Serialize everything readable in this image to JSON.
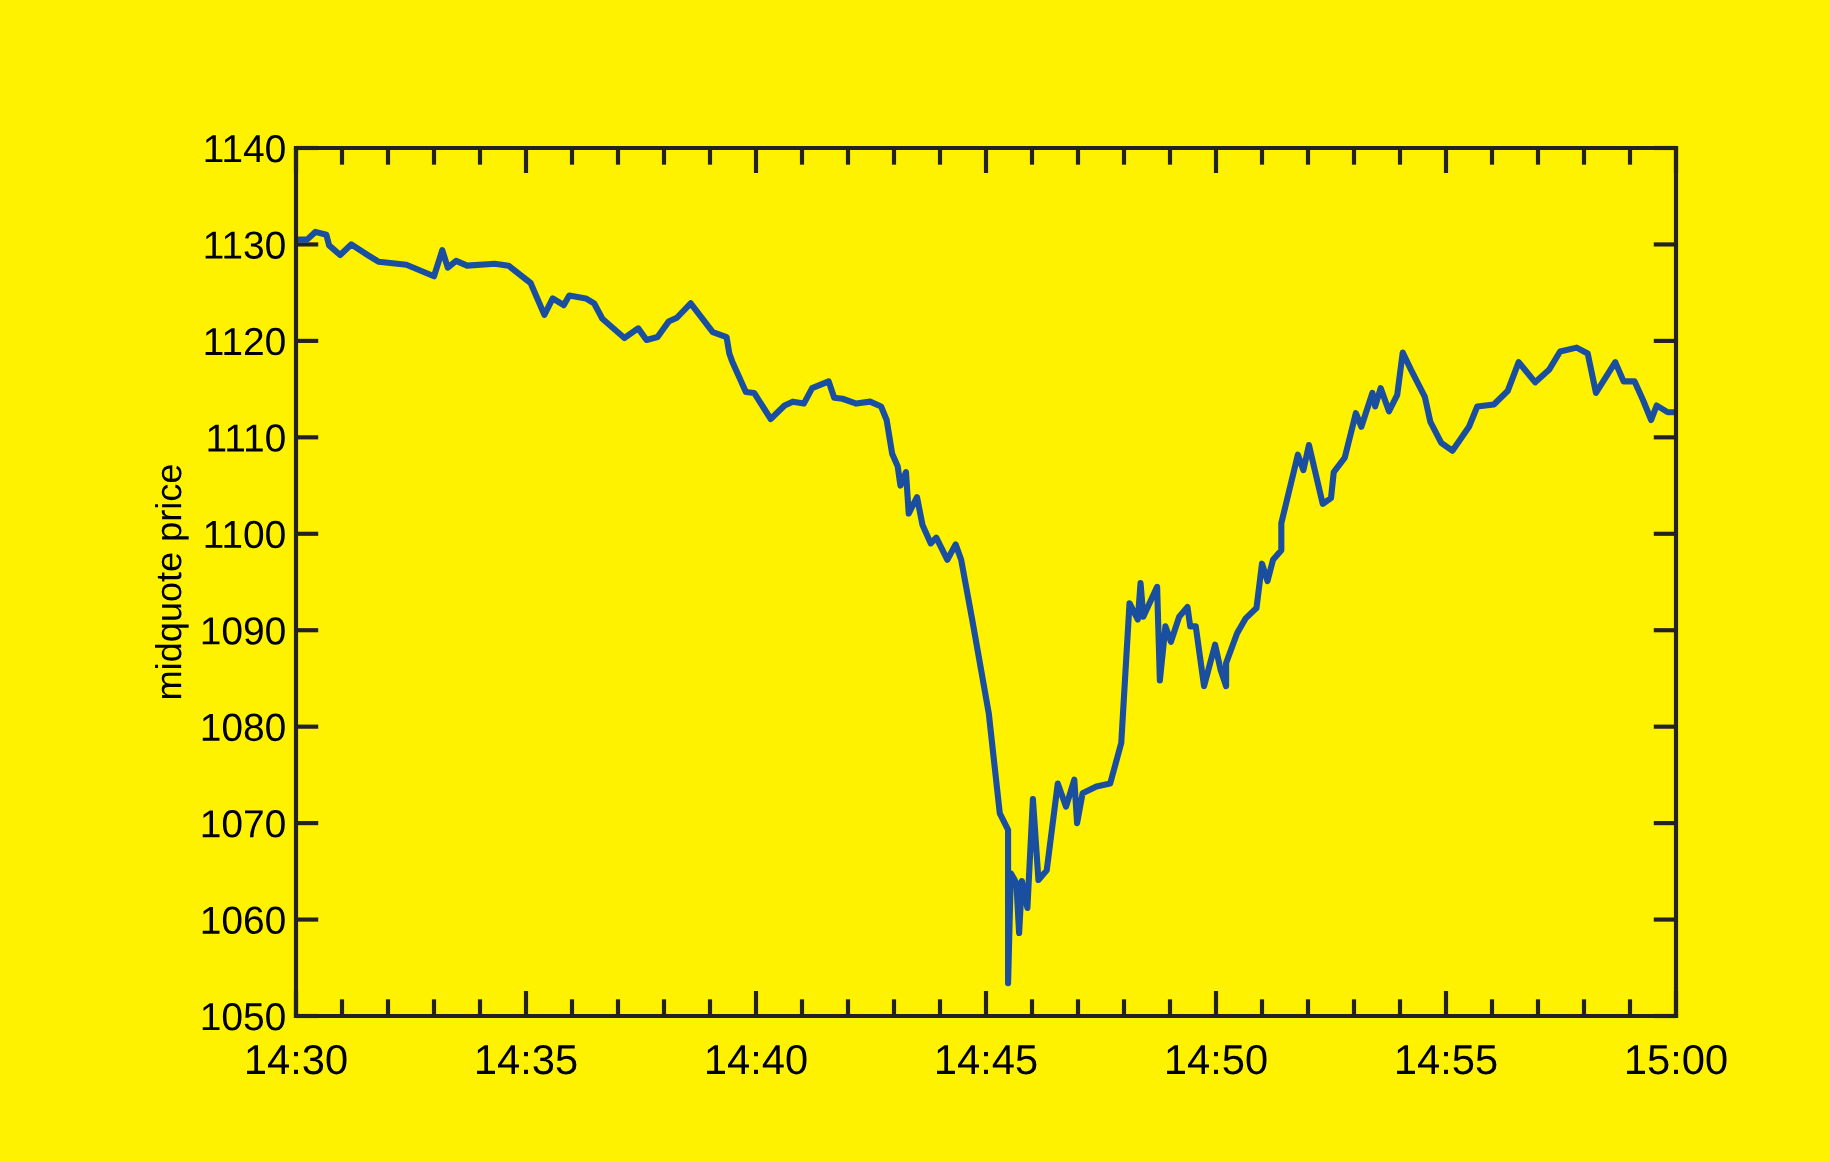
{
  "chart_data": {
    "type": "line",
    "ylabel": "midquote price",
    "x": [
      14.5,
      14.504,
      14.507,
      14.511,
      14.512,
      14.516,
      14.52,
      14.526,
      14.53,
      14.54,
      14.55,
      14.553,
      14.555,
      14.558,
      14.562,
      14.572,
      14.577,
      14.585,
      14.59,
      14.593,
      14.597,
      14.599,
      14.605,
      14.608,
      14.611,
      14.619,
      14.624,
      14.627,
      14.631,
      14.635,
      14.638,
      14.643,
      14.651,
      14.656,
      14.657,
      14.658,
      14.663,
      14.666,
      14.672,
      14.677,
      14.68,
      14.684,
      14.687,
      14.693,
      14.695,
      14.698,
      14.703,
      14.708,
      14.712,
      14.714,
      14.716,
      14.718,
      14.719,
      14.721,
      14.722,
      14.725,
      14.727,
      14.73,
      14.732,
      14.736,
      14.739,
      14.741,
      14.745,
      14.751,
      14.755,
      14.758,
      14.758,
      14.759,
      14.761,
      14.762,
      14.763,
      14.765,
      14.767,
      14.769,
      14.772,
      14.776,
      14.779,
      14.782,
      14.783,
      14.785,
      14.79,
      14.795,
      14.799,
      14.802,
      14.805,
      14.806,
      14.807,
      14.812,
      14.813,
      14.815,
      14.817,
      14.82,
      14.823,
      14.824,
      14.826,
      14.829,
      14.833,
      14.835,
      14.837,
      14.837,
      14.841,
      14.844,
      14.848,
      14.85,
      14.852,
      14.854,
      14.857,
      14.857,
      14.863,
      14.865,
      14.867,
      14.872,
      14.875,
      14.876,
      14.88,
      14.884,
      14.886,
      14.89,
      14.891,
      14.893,
      14.896,
      14.899,
      14.901,
      14.904,
      14.909,
      14.911,
      14.915,
      14.919,
      14.925,
      14.928,
      14.934,
      14.939,
      14.943,
      14.949,
      14.954,
      14.958,
      14.964,
      14.968,
      14.971,
      14.978,
      14.981,
      14.985,
      14.988,
      14.991,
      14.993,
      14.997,
      15.0
    ],
    "series": [
      {
        "color": "#1a4fa0",
        "values": [
          1130.5,
          1130.5,
          1131.3,
          1131.0,
          1129.9,
          1128.9,
          1130.0,
          1128.9,
          1128.2,
          1127.9,
          1126.7,
          1129.4,
          1127.6,
          1128.3,
          1127.8,
          1128.0,
          1127.8,
          1126.0,
          1122.7,
          1124.4,
          1123.7,
          1124.7,
          1124.4,
          1123.9,
          1122.3,
          1120.3,
          1121.3,
          1120.1,
          1120.4,
          1122.0,
          1122.4,
          1123.9,
          1120.9,
          1120.4,
          1118.7,
          1117.9,
          1114.7,
          1114.6,
          1111.9,
          1113.3,
          1113.7,
          1113.5,
          1115.1,
          1115.8,
          1114.1,
          1114.0,
          1113.5,
          1113.7,
          1113.2,
          1111.8,
          1108.3,
          1107.0,
          1105.0,
          1106.4,
          1102.1,
          1103.8,
          1100.9,
          1099.0,
          1099.6,
          1097.3,
          1098.9,
          1097.3,
          1091.1,
          1081.4,
          1071.0,
          1069.3,
          1053.4,
          1064.8,
          1063.8,
          1058.6,
          1064.0,
          1061.2,
          1072.5,
          1064.1,
          1065.1,
          1074.1,
          1071.7,
          1074.5,
          1070.0,
          1073.1,
          1073.8,
          1074.1,
          1078.3,
          1092.8,
          1091.1,
          1094.9,
          1091.4,
          1094.5,
          1084.8,
          1090.4,
          1088.8,
          1091.4,
          1092.4,
          1090.4,
          1090.4,
          1084.2,
          1088.5,
          1085.9,
          1084.2,
          1086.6,
          1089.7,
          1091.2,
          1092.3,
          1096.9,
          1095.1,
          1097.3,
          1098.3,
          1101.1,
          1108.2,
          1106.6,
          1109.2,
          1103.1,
          1103.7,
          1106.4,
          1107.9,
          1112.5,
          1111.1,
          1114.6,
          1113.2,
          1115.1,
          1112.7,
          1114.4,
          1118.8,
          1117.0,
          1114.2,
          1111.6,
          1109.4,
          1108.6,
          1111.1,
          1113.2,
          1113.4,
          1114.8,
          1117.8,
          1115.7,
          1117.0,
          1118.9,
          1119.3,
          1118.7,
          1114.6,
          1117.8,
          1115.8,
          1115.8,
          1113.9,
          1111.8,
          1113.3,
          1112.6,
          1112.6
        ]
      }
    ],
    "xlim": [
      14.5,
      15.0
    ],
    "ylim": [
      1050,
      1140
    ],
    "xticks": [
      {
        "value": 14.5,
        "label": "14:30"
      },
      {
        "value": 14.516667,
        "label": null
      },
      {
        "value": 14.533333,
        "label": null
      },
      {
        "value": 14.55,
        "label": null
      },
      {
        "value": 14.566667,
        "label": null
      },
      {
        "value": 14.583333,
        "label": "14:35"
      },
      {
        "value": 14.6,
        "label": null
      },
      {
        "value": 14.616667,
        "label": null
      },
      {
        "value": 14.633333,
        "label": null
      },
      {
        "value": 14.65,
        "label": null
      },
      {
        "value": 14.666667,
        "label": "14:40"
      },
      {
        "value": 14.683333,
        "label": null
      },
      {
        "value": 14.7,
        "label": null
      },
      {
        "value": 14.716667,
        "label": null
      },
      {
        "value": 14.733333,
        "label": null
      },
      {
        "value": 14.75,
        "label": "14:45"
      },
      {
        "value": 14.766667,
        "label": null
      },
      {
        "value": 14.783333,
        "label": null
      },
      {
        "value": 14.8,
        "label": null
      },
      {
        "value": 14.816667,
        "label": null
      },
      {
        "value": 14.833333,
        "label": "14:50"
      },
      {
        "value": 14.85,
        "label": null
      },
      {
        "value": 14.866667,
        "label": null
      },
      {
        "value": 14.883333,
        "label": null
      },
      {
        "value": 14.9,
        "label": null
      },
      {
        "value": 14.916667,
        "label": "14:55"
      },
      {
        "value": 14.933333,
        "label": null
      },
      {
        "value": 14.95,
        "label": null
      },
      {
        "value": 14.966667,
        "label": null
      },
      {
        "value": 14.983333,
        "label": null
      },
      {
        "value": 15.0,
        "label": "15:00"
      }
    ],
    "yticks": [
      1050,
      1060,
      1070,
      1080,
      1090,
      1100,
      1110,
      1120,
      1130,
      1140
    ],
    "grid": false,
    "legend": false,
    "marker": "none",
    "line_style": "solid"
  }
}
